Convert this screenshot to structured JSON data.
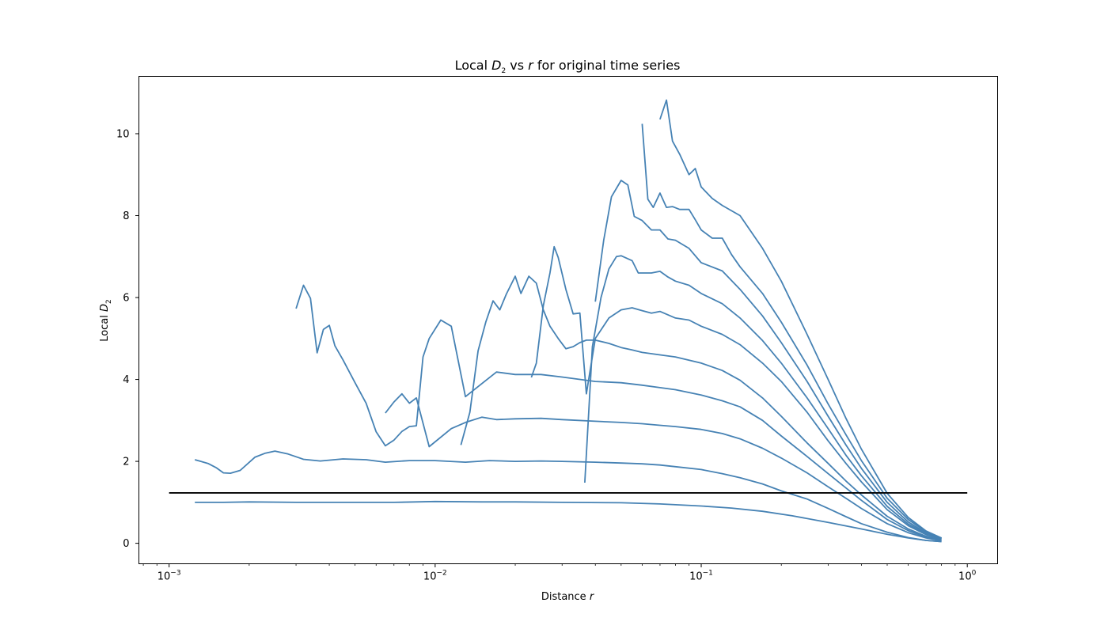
{
  "chart_data": {
    "type": "line",
    "title": {
      "pre": "Local ",
      "sym": "D",
      "sub": "2",
      "mid": " vs ",
      "var": "r",
      "post": " for original time series"
    },
    "xlabel": {
      "pre": "Distance ",
      "var": "r"
    },
    "ylabel": {
      "pre": "Local ",
      "sym": "D",
      "sub": "2"
    },
    "xscale": "log",
    "xlim": [
      0.00077,
      1.3
    ],
    "ylim": [
      -0.5,
      11.4
    ],
    "x_ticks": [
      {
        "value": 0.001,
        "base": "10",
        "exp": "−3"
      },
      {
        "value": 0.01,
        "base": "10",
        "exp": "−2"
      },
      {
        "value": 0.1,
        "base": "10",
        "exp": "−1"
      },
      {
        "value": 1,
        "base": "10",
        "exp": "0"
      }
    ],
    "y_ticks": [
      {
        "value": 0,
        "label": "0"
      },
      {
        "value": 2,
        "label": "2"
      },
      {
        "value": 4,
        "label": "4"
      },
      {
        "value": 6,
        "label": "6"
      },
      {
        "value": 8,
        "label": "8"
      },
      {
        "value": 10,
        "label": "10"
      }
    ],
    "grid": false,
    "line_color": "#4682b4",
    "reference_color": "#000000",
    "reference_line": {
      "x": [
        0.001,
        1.0
      ],
      "y": [
        1.23,
        1.23
      ]
    },
    "series": [
      {
        "x": [
          0.00125,
          0.0016,
          0.002,
          0.003,
          0.005,
          0.007,
          0.01,
          0.015,
          0.02,
          0.03,
          0.05,
          0.07,
          0.1,
          0.13,
          0.17,
          0.22,
          0.3,
          0.4,
          0.5,
          0.6,
          0.7,
          0.8
        ],
        "y": [
          1.0,
          1.0,
          1.01,
          1.0,
          1.0,
          1.0,
          1.02,
          1.01,
          1.01,
          1.0,
          0.99,
          0.96,
          0.91,
          0.86,
          0.78,
          0.67,
          0.51,
          0.35,
          0.22,
          0.13,
          0.07,
          0.04
        ]
      },
      {
        "x": [
          0.00125,
          0.0014,
          0.0015,
          0.0016,
          0.0017,
          0.00185,
          0.0021,
          0.0023,
          0.0025,
          0.0028,
          0.0032,
          0.0037,
          0.0045,
          0.0055,
          0.0065,
          0.008,
          0.01,
          0.013,
          0.016,
          0.02,
          0.025,
          0.03,
          0.04,
          0.05,
          0.06,
          0.07,
          0.08,
          0.1,
          0.12,
          0.14,
          0.17,
          0.2,
          0.25,
          0.3,
          0.35,
          0.4,
          0.5,
          0.6,
          0.7,
          0.8
        ],
        "y": [
          2.04,
          1.95,
          1.85,
          1.72,
          1.71,
          1.78,
          2.1,
          2.2,
          2.25,
          2.18,
          2.05,
          2.01,
          2.06,
          2.04,
          1.98,
          2.02,
          2.02,
          1.98,
          2.02,
          2.0,
          2.01,
          2.0,
          1.98,
          1.96,
          1.94,
          1.91,
          1.87,
          1.8,
          1.7,
          1.6,
          1.45,
          1.28,
          1.08,
          0.85,
          0.65,
          0.48,
          0.27,
          0.14,
          0.07,
          0.04
        ]
      },
      {
        "x": [
          0.0065,
          0.007,
          0.0075,
          0.008,
          0.0085,
          0.0095,
          0.0115,
          0.013,
          0.015,
          0.017,
          0.02,
          0.025,
          0.03,
          0.04,
          0.05,
          0.06,
          0.07,
          0.08,
          0.1,
          0.12,
          0.14,
          0.17,
          0.2,
          0.25,
          0.3,
          0.35,
          0.4,
          0.5,
          0.6,
          0.7,
          0.8
        ],
        "y": [
          3.18,
          3.45,
          3.65,
          3.42,
          3.55,
          2.36,
          2.8,
          2.95,
          3.08,
          3.02,
          3.04,
          3.05,
          3.02,
          2.98,
          2.95,
          2.92,
          2.88,
          2.85,
          2.78,
          2.68,
          2.55,
          2.32,
          2.08,
          1.72,
          1.38,
          1.1,
          0.85,
          0.48,
          0.26,
          0.13,
          0.06
        ]
      },
      {
        "x": [
          0.003,
          0.0032,
          0.0034,
          0.0036,
          0.0038,
          0.004,
          0.0042,
          0.0045,
          0.005,
          0.0055,
          0.006,
          0.0065,
          0.007,
          0.0075,
          0.008,
          0.0085,
          0.009,
          0.0095,
          0.0105,
          0.0115,
          0.013,
          0.015,
          0.017,
          0.02,
          0.025,
          0.03,
          0.04,
          0.05,
          0.06,
          0.07,
          0.08,
          0.1,
          0.12,
          0.14,
          0.17,
          0.2,
          0.25,
          0.3,
          0.35,
          0.4,
          0.5,
          0.6,
          0.7,
          0.8
        ],
        "y": [
          5.73,
          6.3,
          5.98,
          4.65,
          5.22,
          5.32,
          4.82,
          4.48,
          3.92,
          3.42,
          2.72,
          2.38,
          2.52,
          2.73,
          2.85,
          2.87,
          4.55,
          5.0,
          5.45,
          5.3,
          3.58,
          3.9,
          4.18,
          4.12,
          4.12,
          4.06,
          3.95,
          3.92,
          3.86,
          3.8,
          3.75,
          3.62,
          3.48,
          3.33,
          3.0,
          2.62,
          2.12,
          1.7,
          1.35,
          1.05,
          0.58,
          0.31,
          0.15,
          0.07
        ]
      },
      {
        "x": [
          0.0125,
          0.0135,
          0.0145,
          0.0155,
          0.0165,
          0.0175,
          0.0185,
          0.02,
          0.021,
          0.0225,
          0.024,
          0.0255,
          0.027,
          0.029,
          0.031,
          0.033,
          0.035,
          0.037,
          0.04,
          0.045,
          0.05,
          0.055,
          0.06,
          0.07,
          0.08,
          0.1,
          0.12,
          0.14,
          0.17,
          0.2,
          0.25,
          0.3,
          0.35,
          0.4,
          0.5,
          0.6,
          0.7,
          0.8
        ],
        "y": [
          2.4,
          3.2,
          4.7,
          5.4,
          5.92,
          5.7,
          6.08,
          6.52,
          6.1,
          6.52,
          6.35,
          5.7,
          5.3,
          5.0,
          4.75,
          4.8,
          4.9,
          4.96,
          4.96,
          4.88,
          4.78,
          4.72,
          4.66,
          4.6,
          4.55,
          4.4,
          4.22,
          3.98,
          3.55,
          3.1,
          2.45,
          1.95,
          1.52,
          1.18,
          0.66,
          0.35,
          0.17,
          0.08
        ]
      },
      {
        "x": [
          0.023,
          0.024,
          0.0255,
          0.027,
          0.028,
          0.029,
          0.031,
          0.033,
          0.035,
          0.037,
          0.04,
          0.045,
          0.05,
          0.055,
          0.06,
          0.065,
          0.07,
          0.08,
          0.09,
          0.1,
          0.12,
          0.14,
          0.17,
          0.2,
          0.25,
          0.3,
          0.35,
          0.4,
          0.5,
          0.6,
          0.7,
          0.8
        ],
        "y": [
          4.05,
          4.4,
          5.8,
          6.6,
          7.24,
          6.98,
          6.2,
          5.6,
          5.62,
          3.65,
          5.0,
          5.5,
          5.7,
          5.75,
          5.68,
          5.62,
          5.66,
          5.5,
          5.45,
          5.3,
          5.1,
          4.85,
          4.4,
          3.95,
          3.2,
          2.5,
          1.95,
          1.5,
          0.82,
          0.43,
          0.21,
          0.1
        ]
      },
      {
        "x": [
          0.0365,
          0.039,
          0.042,
          0.045,
          0.048,
          0.05,
          0.055,
          0.058,
          0.06,
          0.065,
          0.07,
          0.075,
          0.08,
          0.09,
          0.1,
          0.12,
          0.14,
          0.17,
          0.2,
          0.25,
          0.3,
          0.35,
          0.4,
          0.5,
          0.6,
          0.7,
          0.8
        ],
        "y": [
          1.48,
          4.8,
          6.0,
          6.7,
          7.0,
          7.02,
          6.9,
          6.6,
          6.6,
          6.6,
          6.64,
          6.5,
          6.4,
          6.3,
          6.1,
          5.85,
          5.5,
          4.95,
          4.4,
          3.55,
          2.8,
          2.15,
          1.65,
          0.9,
          0.47,
          0.23,
          0.11
        ]
      },
      {
        "x": [
          0.04,
          0.043,
          0.046,
          0.05,
          0.053,
          0.056,
          0.06,
          0.065,
          0.07,
          0.075,
          0.08,
          0.09,
          0.1,
          0.12,
          0.14,
          0.17,
          0.2,
          0.25,
          0.3,
          0.35,
          0.4,
          0.5,
          0.6,
          0.7,
          0.8
        ],
        "y": [
          5.9,
          7.4,
          8.46,
          8.86,
          8.75,
          7.98,
          7.88,
          7.65,
          7.65,
          7.43,
          7.4,
          7.2,
          6.85,
          6.65,
          6.2,
          5.55,
          4.9,
          3.95,
          3.1,
          2.4,
          1.83,
          1.0,
          0.52,
          0.25,
          0.12
        ]
      },
      {
        "x": [
          0.06,
          0.063,
          0.066,
          0.07,
          0.074,
          0.078,
          0.083,
          0.09,
          0.095,
          0.1,
          0.11,
          0.12,
          0.13,
          0.14,
          0.17,
          0.2,
          0.25,
          0.3,
          0.35,
          0.4,
          0.5,
          0.6,
          0.7,
          0.8
        ],
        "y": [
          10.24,
          8.4,
          8.2,
          8.55,
          8.2,
          8.22,
          8.15,
          8.15,
          7.9,
          7.65,
          7.45,
          7.45,
          7.05,
          6.75,
          6.1,
          5.4,
          4.35,
          3.4,
          2.65,
          2.02,
          1.1,
          0.58,
          0.28,
          0.13
        ]
      },
      {
        "x": [
          0.07,
          0.074,
          0.078,
          0.083,
          0.09,
          0.095,
          0.1,
          0.11,
          0.12,
          0.14,
          0.17,
          0.2,
          0.25,
          0.3,
          0.35,
          0.4,
          0.5,
          0.6,
          0.7,
          0.8
        ],
        "y": [
          10.35,
          10.82,
          9.82,
          9.5,
          9.0,
          9.15,
          8.7,
          8.42,
          8.25,
          8.0,
          7.2,
          6.4,
          5.1,
          4.0,
          3.05,
          2.3,
          1.22,
          0.63,
          0.3,
          0.13
        ]
      }
    ]
  }
}
